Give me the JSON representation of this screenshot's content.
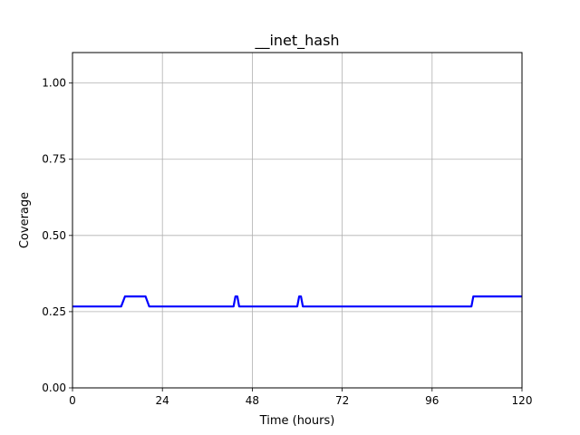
{
  "chart_data": {
    "type": "line",
    "title": "__inet_hash",
    "xlabel": "Time (hours)",
    "ylabel": "Coverage",
    "xlim": [
      0,
      120
    ],
    "ylim": [
      0,
      1.1
    ],
    "xticks": [
      0,
      24,
      48,
      72,
      96,
      120
    ],
    "xtick_labels": [
      "0",
      "24",
      "48",
      "72",
      "96",
      "120"
    ],
    "yticks": [
      0,
      0.25,
      0.5,
      0.75,
      1.0
    ],
    "ytick_labels": [
      "0.00",
      "0.25",
      "0.50",
      "0.75",
      "1.00"
    ],
    "grid": true,
    "line_color": "#0000ff",
    "series": [
      {
        "x": [
          0,
          13,
          14,
          19.5,
          20.5,
          43,
          43.5,
          44,
          44.5,
          60,
          60.5,
          61,
          61.5,
          106.5,
          107,
          120
        ],
        "y": [
          0.267,
          0.267,
          0.3,
          0.3,
          0.267,
          0.267,
          0.3,
          0.3,
          0.267,
          0.267,
          0.3,
          0.3,
          0.267,
          0.267,
          0.3,
          0.3
        ]
      }
    ]
  }
}
